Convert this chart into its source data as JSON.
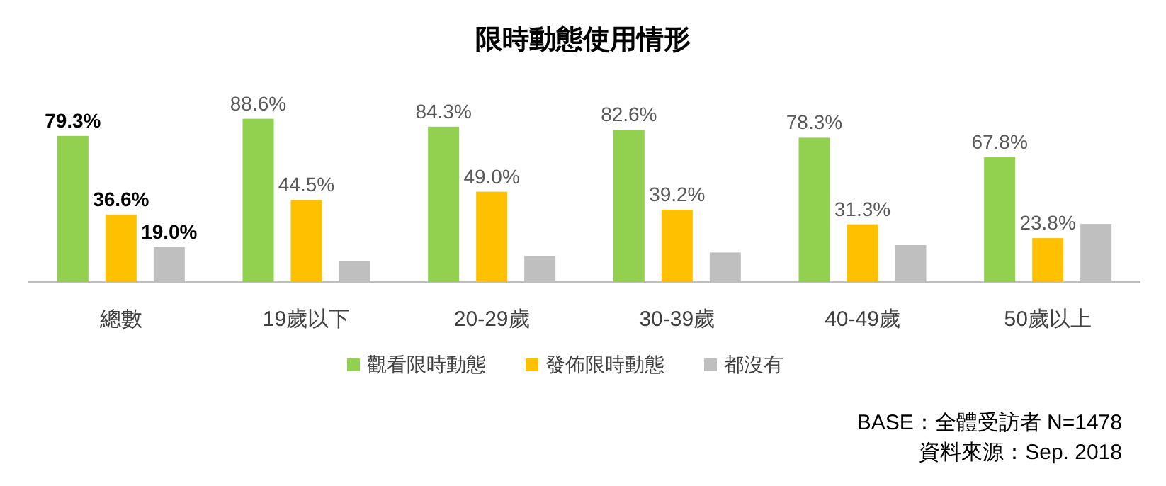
{
  "chart_data": {
    "type": "bar",
    "title": "限時動態使用情形",
    "categories": [
      "總數",
      "19歲以下",
      "20-29歲",
      "30-39歲",
      "40-49歲",
      "50歲以上"
    ],
    "series": [
      {
        "name": "觀看限時動態",
        "color": "#92d050",
        "values": [
          79.3,
          88.6,
          84.3,
          82.6,
          78.3,
          67.8
        ],
        "value_labels": [
          "79.3%",
          "88.6%",
          "84.3%",
          "82.6%",
          "78.3%",
          "67.8%"
        ]
      },
      {
        "name": "發佈限時動態",
        "color": "#ffc000",
        "values": [
          36.6,
          44.5,
          49.0,
          39.2,
          31.3,
          23.8
        ],
        "value_labels": [
          "36.6%",
          "44.5%",
          "49.0%",
          "39.2%",
          "31.3%",
          "23.8%"
        ]
      },
      {
        "name": "都沒有",
        "color": "#bfbfbf",
        "values": [
          19.0,
          11.5,
          14,
          16,
          20,
          31.5
        ],
        "value_labels": [
          "19.0%",
          null,
          null,
          null,
          null,
          null
        ]
      }
    ],
    "legend": "bottom",
    "annotations": [
      "BASE：全體受訪者 N=1478",
      "資料來源：Sep. 2018"
    ]
  }
}
